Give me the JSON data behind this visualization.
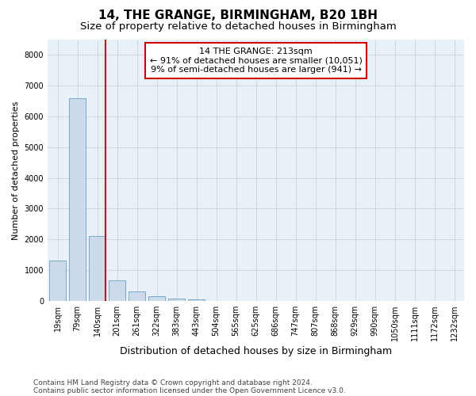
{
  "title1": "14, THE GRANGE, BIRMINGHAM, B20 1BH",
  "title2": "Size of property relative to detached houses in Birmingham",
  "xlabel": "Distribution of detached houses by size in Birmingham",
  "ylabel": "Number of detached properties",
  "categories": [
    "19sqm",
    "79sqm",
    "140sqm",
    "201sqm",
    "261sqm",
    "322sqm",
    "383sqm",
    "443sqm",
    "504sqm",
    "565sqm",
    "625sqm",
    "686sqm",
    "747sqm",
    "807sqm",
    "868sqm",
    "929sqm",
    "990sqm",
    "1050sqm",
    "1111sqm",
    "1172sqm",
    "1232sqm"
  ],
  "values": [
    1300,
    6600,
    2100,
    650,
    300,
    150,
    80,
    40,
    5,
    5,
    0,
    0,
    0,
    0,
    0,
    0,
    0,
    0,
    0,
    0,
    0
  ],
  "bar_color": "#ccdaeb",
  "bar_edge_color": "#7aaac8",
  "vline_color": "#cc0000",
  "vline_x_idx": 2,
  "annotation_text": "14 THE GRANGE: 213sqm\n← 91% of detached houses are smaller (10,051)\n9% of semi-detached houses are larger (941) →",
  "annotation_box_facecolor": "white",
  "annotation_box_edgecolor": "#cc0000",
  "ylim": [
    0,
    8500
  ],
  "yticks": [
    0,
    1000,
    2000,
    3000,
    4000,
    5000,
    6000,
    7000,
    8000
  ],
  "footer1": "Contains HM Land Registry data © Crown copyright and database right 2024.",
  "footer2": "Contains public sector information licensed under the Open Government Licence v3.0.",
  "title1_fontsize": 11,
  "title2_fontsize": 9.5,
  "xlabel_fontsize": 9,
  "ylabel_fontsize": 8,
  "tick_fontsize": 7,
  "ann_fontsize": 8,
  "footer_fontsize": 6.5,
  "grid_color": "#c8d4e0",
  "bg_color": "#e8f0f8"
}
